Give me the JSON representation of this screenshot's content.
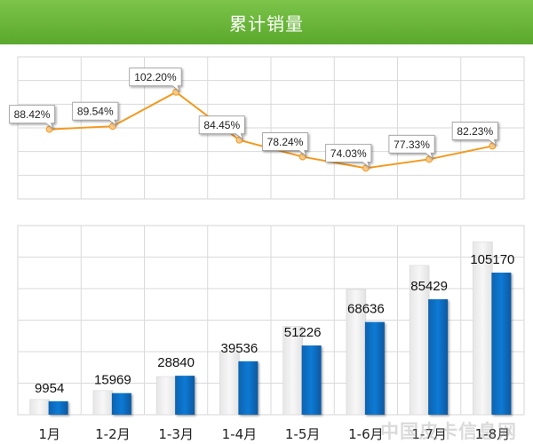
{
  "title": "累计销量",
  "watermark": "中国皮卡信息网",
  "colors": {
    "header": "#6db83d",
    "line": "#f29a1f",
    "bar_current": "#0a6fc2",
    "bar_previous": "#ececec"
  },
  "chart_data": [
    {
      "type": "line",
      "title": "",
      "categories": [
        "1月",
        "1-2月",
        "1-3月",
        "1-4月",
        "1-5月",
        "1-6月",
        "1-7月",
        "1-8月"
      ],
      "values": [
        88.42,
        89.54,
        102.2,
        84.45,
        78.24,
        74.03,
        77.33,
        82.23
      ],
      "data_labels": [
        "88.42%",
        "89.54%",
        "102.20%",
        "84.45%",
        "78.24%",
        "74.03%",
        "77.33%",
        "82.23%"
      ],
      "grid": true,
      "legend": "none"
    },
    {
      "type": "bar",
      "title": "",
      "categories": [
        "1月",
        "1-2月",
        "1-3月",
        "1-4月",
        "1-5月",
        "1-6月",
        "1-7月",
        "1-8月"
      ],
      "series": [
        {
          "values": [
            9954,
            15969,
            28840,
            39536,
            51226,
            68636,
            85429,
            105170
          ]
        },
        {
          "values": [
            11258,
            17834,
            28219,
            46816,
            65474,
            92715,
            110475,
            127896
          ]
        }
      ],
      "data_labels": [
        "9954",
        "15969",
        "28840",
        "39536",
        "51226",
        "68636",
        "85429",
        "105170"
      ],
      "ylim": [
        0,
        140000
      ],
      "grid": true,
      "legend": "none"
    }
  ]
}
